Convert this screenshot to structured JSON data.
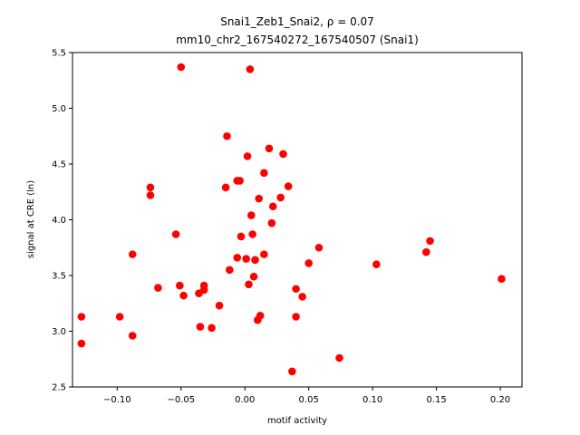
{
  "chart_data": {
    "type": "scatter",
    "title_line1": "Snai1_Zeb1_Snai2, ρ = 0.07",
    "title_line2": "mm10_chr2_167540272_167540507 (Snai1)",
    "xlabel": "motif activity",
    "ylabel": "signal at CRE (ln)",
    "xlim": [
      -0.135,
      0.217
    ],
    "ylim": [
      2.5,
      5.5
    ],
    "xticks": [
      -0.1,
      -0.05,
      0.0,
      0.05,
      0.1,
      0.15,
      0.2
    ],
    "xtick_labels": [
      "−0.10",
      "−0.05",
      "0.00",
      "0.05",
      "0.10",
      "0.15",
      "0.20"
    ],
    "yticks": [
      2.5,
      3.0,
      3.5,
      4.0,
      4.5,
      5.0,
      5.5
    ],
    "ytick_labels": [
      "2.5",
      "3.0",
      "3.5",
      "4.0",
      "4.5",
      "5.0",
      "5.5"
    ],
    "grid": false,
    "marker_color": "#ff0000",
    "points": [
      {
        "x": -0.128,
        "y": 3.13
      },
      {
        "x": -0.128,
        "y": 2.89
      },
      {
        "x": -0.098,
        "y": 3.13
      },
      {
        "x": -0.088,
        "y": 3.69
      },
      {
        "x": -0.088,
        "y": 2.96
      },
      {
        "x": -0.074,
        "y": 4.29
      },
      {
        "x": -0.074,
        "y": 4.22
      },
      {
        "x": -0.068,
        "y": 3.39
      },
      {
        "x": -0.054,
        "y": 3.87
      },
      {
        "x": -0.051,
        "y": 3.41
      },
      {
        "x": -0.05,
        "y": 5.37
      },
      {
        "x": -0.048,
        "y": 3.32
      },
      {
        "x": -0.036,
        "y": 3.34
      },
      {
        "x": -0.035,
        "y": 3.04
      },
      {
        "x": -0.032,
        "y": 3.37
      },
      {
        "x": -0.032,
        "y": 3.41
      },
      {
        "x": -0.026,
        "y": 3.03
      },
      {
        "x": -0.02,
        "y": 3.23
      },
      {
        "x": -0.015,
        "y": 4.29
      },
      {
        "x": -0.014,
        "y": 4.75
      },
      {
        "x": -0.012,
        "y": 3.55
      },
      {
        "x": -0.006,
        "y": 4.35
      },
      {
        "x": -0.006,
        "y": 3.66
      },
      {
        "x": -0.004,
        "y": 4.35
      },
      {
        "x": -0.003,
        "y": 3.85
      },
      {
        "x": 0.001,
        "y": 3.65
      },
      {
        "x": 0.002,
        "y": 4.57
      },
      {
        "x": 0.003,
        "y": 3.42
      },
      {
        "x": 0.004,
        "y": 5.35
      },
      {
        "x": 0.005,
        "y": 4.04
      },
      {
        "x": 0.006,
        "y": 3.87
      },
      {
        "x": 0.007,
        "y": 3.49
      },
      {
        "x": 0.008,
        "y": 3.64
      },
      {
        "x": 0.01,
        "y": 3.1
      },
      {
        "x": 0.011,
        "y": 4.19
      },
      {
        "x": 0.012,
        "y": 3.14
      },
      {
        "x": 0.015,
        "y": 3.69
      },
      {
        "x": 0.015,
        "y": 4.42
      },
      {
        "x": 0.019,
        "y": 4.64
      },
      {
        "x": 0.021,
        "y": 3.97
      },
      {
        "x": 0.022,
        "y": 4.12
      },
      {
        "x": 0.028,
        "y": 4.2
      },
      {
        "x": 0.03,
        "y": 4.59
      },
      {
        "x": 0.034,
        "y": 4.3
      },
      {
        "x": 0.037,
        "y": 2.64
      },
      {
        "x": 0.04,
        "y": 3.38
      },
      {
        "x": 0.04,
        "y": 3.13
      },
      {
        "x": 0.045,
        "y": 3.31
      },
      {
        "x": 0.05,
        "y": 3.61
      },
      {
        "x": 0.058,
        "y": 3.75
      },
      {
        "x": 0.074,
        "y": 2.76
      },
      {
        "x": 0.103,
        "y": 3.6
      },
      {
        "x": 0.142,
        "y": 3.71
      },
      {
        "x": 0.145,
        "y": 3.81
      },
      {
        "x": 0.201,
        "y": 3.47
      }
    ]
  }
}
